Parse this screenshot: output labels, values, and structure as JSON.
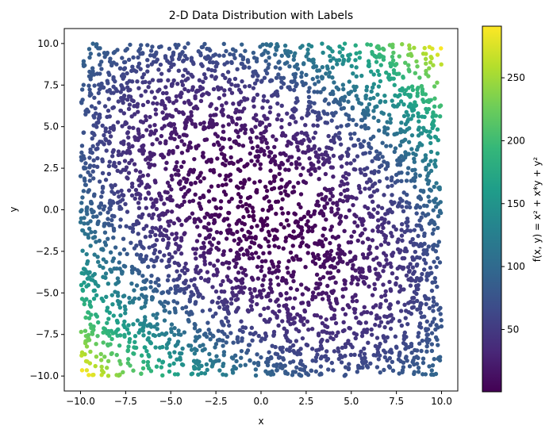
{
  "chart_data": {
    "type": "scatter",
    "title": "2-D Data Distribution with Labels",
    "xlabel": "x",
    "ylabel": "y",
    "xlim": [
      -10.9,
      10.9
    ],
    "ylim": [
      -10.9,
      10.9
    ],
    "xticks": [
      -10.0,
      -7.5,
      -5.0,
      -2.5,
      0.0,
      2.5,
      5.0,
      7.5,
      10.0
    ],
    "yticks": [
      -10.0,
      -7.5,
      -5.0,
      -2.5,
      0.0,
      2.5,
      5.0,
      7.5,
      10.0
    ],
    "grid": false,
    "colormap": "viridis",
    "value_function": "x^2 + x*y + y^2",
    "colorbar": {
      "label": "f(x, y) = x² + x*y + y²",
      "range": [
        0.5,
        291
      ],
      "ticks": [
        50,
        100,
        150,
        200,
        250
      ]
    },
    "point_sampling": {
      "count": 3800,
      "distribution": "uniform",
      "x_range": [
        -10,
        10
      ],
      "y_range": [
        -10,
        10
      ]
    },
    "point_color_note": "each point colored by f(x,y)"
  }
}
